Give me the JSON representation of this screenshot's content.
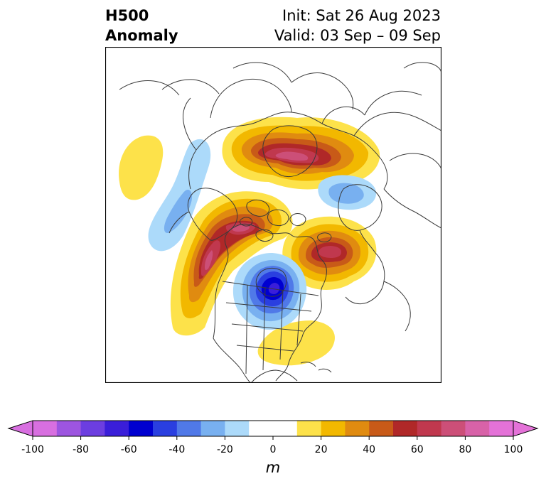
{
  "title": {
    "left_line1": "H500",
    "left_line2": "Anomaly",
    "right_line1": "Init: Sat 26 Aug 2023",
    "right_line2": "Valid: 03 Sep – 09 Sep"
  },
  "colorbar": {
    "ticks": [
      "-100",
      "-80",
      "-60",
      "-40",
      "-20",
      "0",
      "20",
      "40",
      "60",
      "80",
      "100"
    ],
    "units": "m",
    "range": [
      -100,
      100
    ],
    "step": 10,
    "extend": "both",
    "colors": [
      "#d86fe0",
      "#9d55e0",
      "#6c3ee0",
      "#3a1ed9",
      "#0000d0",
      "#2a3fe0",
      "#5079e8",
      "#78b0f0",
      "#acdafa",
      "#ffffff",
      "#ffffff",
      "#fde24a",
      "#f2b800",
      "#e08b10",
      "#c85a18",
      "#b02828",
      "#c0384e",
      "#cc4f78",
      "#d862a8",
      "#e472d8"
    ],
    "under_color": "#d86fe0",
    "over_color": "#e472d8"
  }
}
